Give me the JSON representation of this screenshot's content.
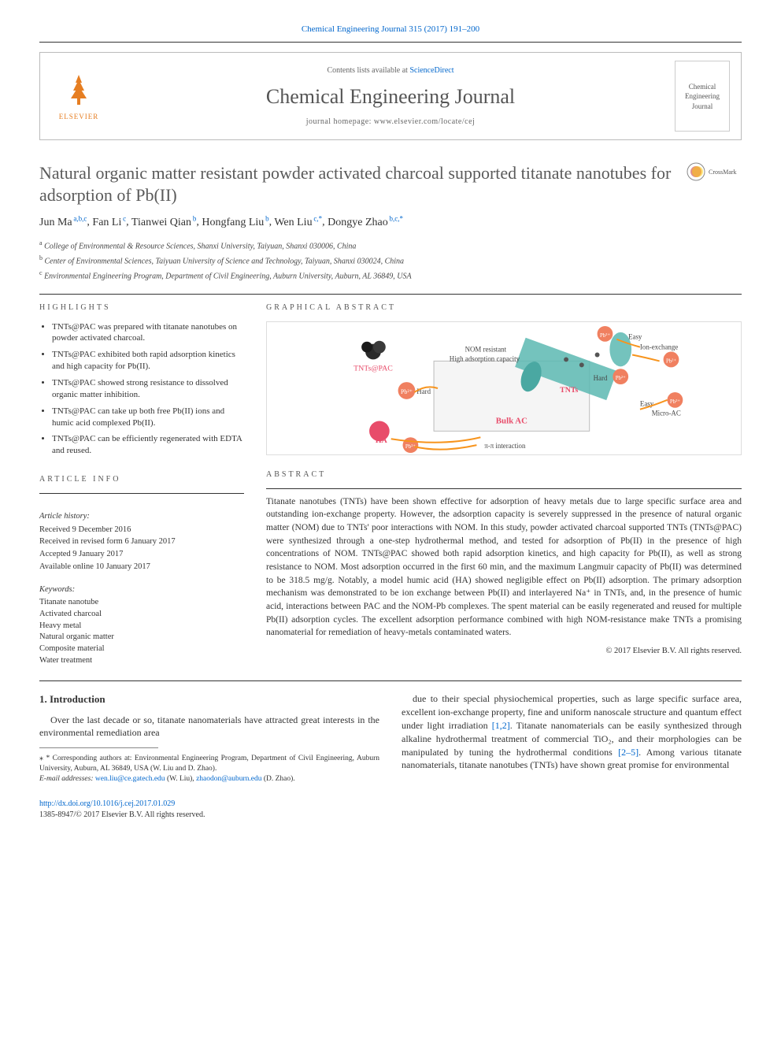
{
  "header": {
    "citation": "Chemical Engineering Journal 315 (2017) 191–200",
    "contents_line_prefix": "Contents lists available at ",
    "contents_link": "ScienceDirect",
    "journal_name": "Chemical Engineering Journal",
    "homepage_prefix": "journal homepage: ",
    "homepage_url": "www.elsevier.com/locate/cej",
    "publisher": "ELSEVIER",
    "cover_text": "Chemical Engineering Journal"
  },
  "crossmark_label": "CrossMark",
  "title": "Natural organic matter resistant powder activated charcoal supported titanate nanotubes for adsorption of Pb(II)",
  "authors_html": "Jun Ma",
  "authors": [
    {
      "name": "Jun Ma",
      "aff": "a,b,c"
    },
    {
      "name": "Fan Li",
      "aff": "c"
    },
    {
      "name": "Tianwei Qian",
      "aff": "b"
    },
    {
      "name": "Hongfang Liu",
      "aff": "b"
    },
    {
      "name": "Wen Liu",
      "aff": "c,*"
    },
    {
      "name": "Dongye Zhao",
      "aff": "b,c,*"
    }
  ],
  "affiliations": [
    {
      "key": "a",
      "text": "College of Environmental & Resource Sciences, Shanxi University, Taiyuan, Shanxi 030006, China"
    },
    {
      "key": "b",
      "text": "Center of Environmental Sciences, Taiyuan University of Science and Technology, Taiyuan, Shanxi 030024, China"
    },
    {
      "key": "c",
      "text": "Environmental Engineering Program, Department of Civil Engineering, Auburn University, Auburn, AL 36849, USA"
    }
  ],
  "labels": {
    "highlights": "HIGHLIGHTS",
    "graphical_abstract": "GRAPHICAL ABSTRACT",
    "article_info": "ARTICLE INFO",
    "abstract": "ABSTRACT"
  },
  "highlights": [
    "TNTs@PAC was prepared with titanate nanotubes on powder activated charcoal.",
    "TNTs@PAC exhibited both rapid adsorption kinetics and high capacity for Pb(II).",
    "TNTs@PAC showed strong resistance to dissolved organic matter inhibition.",
    "TNTs@PAC can take up both free Pb(II) ions and humic acid complexed Pb(II).",
    "TNTs@PAC can be efficiently regenerated with EDTA and reused."
  ],
  "article_info": {
    "history_label": "Article history:",
    "history": [
      "Received 9 December 2016",
      "Received in revised form 6 January 2017",
      "Accepted 9 January 2017",
      "Available online 10 January 2017"
    ],
    "keywords_label": "Keywords:",
    "keywords": [
      "Titanate nanotube",
      "Activated charcoal",
      "Heavy metal",
      "Natural organic matter",
      "Composite material",
      "Water treatment"
    ]
  },
  "graphical_abstract": {
    "labels": {
      "tnts_pac": "TNTs@PAC",
      "nom": "NOM resistant",
      "capacity": "High adsorption capacity",
      "ion_exchange": "Ion-exchange",
      "easy": "Easy",
      "hard": "Hard",
      "bulk_ac": "Bulk AC",
      "micro_ac": "Micro-AC",
      "tnts": "TNTs",
      "ha": "HA",
      "pi": "π-π interaction",
      "pb": "Pb²⁺"
    },
    "colors": {
      "nanotube": "#5cb8b2",
      "pb_ion": "#f08060",
      "ha": "#e84c6a",
      "arrow": "#f7941d",
      "bulk_fill": "#f5f5f5",
      "bulk_text": "#e84c6a",
      "tnts_text": "#e84c6a"
    }
  },
  "abstract": "Titanate nanotubes (TNTs) have been shown effective for adsorption of heavy metals due to large specific surface area and outstanding ion-exchange property. However, the adsorption capacity is severely suppressed in the presence of natural organic matter (NOM) due to TNTs' poor interactions with NOM. In this study, powder activated charcoal supported TNTs (TNTs@PAC) were synthesized through a one-step hydrothermal method, and tested for adsorption of Pb(II) in the presence of high concentrations of NOM. TNTs@PAC showed both rapid adsorption kinetics, and high capacity for Pb(II), as well as strong resistance to NOM. Most adsorption occurred in the first 60 min, and the maximum Langmuir capacity of Pb(II) was determined to be 318.5 mg/g. Notably, a model humic acid (HA) showed negligible effect on Pb(II) adsorption. The primary adsorption mechanism was demonstrated to be ion exchange between Pb(II) and interlayered Na⁺ in TNTs, and, in the presence of humic acid, interactions between PAC and the NOM-Pb complexes. The spent material can be easily regenerated and reused for multiple Pb(II) adsorption cycles. The excellent adsorption performance combined with high NOM-resistance make TNTs a promising nanomaterial for remediation of heavy-metals contaminated waters.",
  "copyright": "© 2017 Elsevier B.V. All rights reserved.",
  "body": {
    "section_number": "1.",
    "section_title": "Introduction",
    "para1": "Over the last decade or so, titanate nanomaterials have attracted great interests in the environmental remediation area",
    "para2_prefix": "due to their special physiochemical properties, such as large specific surface area, excellent ion-exchange property, fine and uniform nanoscale structure and quantum effect under light irradiation ",
    "para2_ref1": "[1,2]",
    "para2_mid": ". Titanate nanomaterials can be easily synthesized through alkaline hydrothermal treatment of commercial TiO₂, and their morphologies can be manipulated by tuning the hydrothermal conditions ",
    "para2_ref2": "[2–5]",
    "para2_suffix": ". Among various titanate nanomaterials, titanate nanotubes (TNTs) have shown great promise for environmental"
  },
  "footnote": {
    "corr_label": "* Corresponding authors at: Environmental Engineering Program, Department of Civil Engineering, Auburn University, Auburn, AL 36849, USA (W. Liu and D. Zhao).",
    "email_label": "E-mail addresses:",
    "email1": "wen.liu@ce.gatech.edu",
    "email1_who": "(W. Liu),",
    "email2": "zhaodon@auburn.edu",
    "email2_who": "(D. Zhao)."
  },
  "footer": {
    "doi": "http://dx.doi.org/10.1016/j.cej.2017.01.029",
    "issn_line": "1385-8947/© 2017 Elsevier B.V. All rights reserved."
  },
  "colors": {
    "link": "#0066cc",
    "elsevier_orange": "#e67e22",
    "text": "#333333",
    "rule": "#333333"
  }
}
